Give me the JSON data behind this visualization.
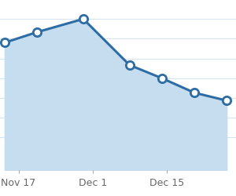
{
  "x_values": [
    -3,
    4,
    14,
    24,
    31,
    38,
    45
  ],
  "y_values": [
    82,
    90,
    100,
    65,
    55,
    44,
    38
  ],
  "line_color": "#2e6da4",
  "fill_color": "#c6ddf0",
  "marker_color": "#ffffff",
  "marker_edge_color": "#2e6da4",
  "background_color": "#ffffff",
  "grid_color": "#d5e3ee",
  "xtick_positions": [
    0,
    16,
    32
  ],
  "xtick_labels": [
    "Nov 17",
    "Dec 1",
    "Dec 15"
  ],
  "ylim": [
    -15,
    115
  ],
  "xlim": [
    -4,
    47
  ]
}
